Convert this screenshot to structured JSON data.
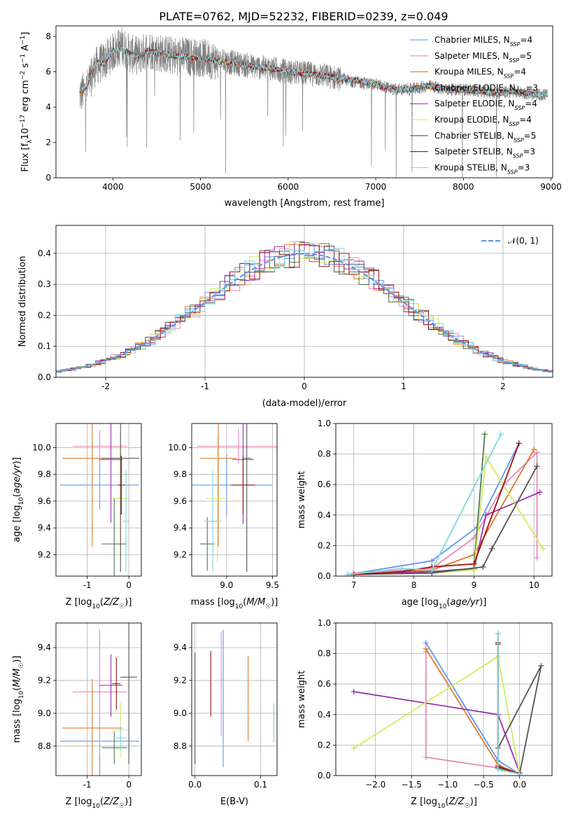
{
  "figure": {
    "title": "PLATE=0762, MJD=52232, FIBERID=0239, z=0.049"
  },
  "models": [
    {
      "name": "Chabrier MILES",
      "nssp": "4",
      "color": "#6495ed"
    },
    {
      "name": "Salpeter MILES",
      "nssp": "5",
      "color": "#e88ab8"
    },
    {
      "name": "Kroupa MILES",
      "nssp": "4",
      "color": "#e07a2a"
    },
    {
      "name": "Chabrier ELODIE",
      "nssp": "3",
      "color": "#4f7a4f"
    },
    {
      "name": "Salpeter ELODIE",
      "nssp": "4",
      "color": "#9b30b0"
    },
    {
      "name": "Kroupa ELODIE",
      "nssp": "4",
      "color": "#d4e860"
    },
    {
      "name": "Chabrier STELIB",
      "nssp": "5",
      "color": "#555555"
    },
    {
      "name": "Salpeter STELIB",
      "nssp": "3",
      "color": "#a01010"
    },
    {
      "name": "Kroupa STELIB",
      "nssp": "3",
      "color": "#7fd8e0"
    }
  ],
  "chart_data": [
    {
      "id": "spectrum",
      "type": "line",
      "xlabel": "wavelength [Angstrom, rest frame]",
      "ylabel": "Flux [f_λ 10^-17 erg cm^-2 s^-1 A^-1]",
      "xlim": [
        3350,
        9020
      ],
      "ylim": [
        0,
        8.6
      ],
      "xticks": [
        4000,
        5000,
        6000,
        7000,
        8000,
        9000
      ],
      "yticks": [
        0,
        2,
        4,
        6,
        8
      ],
      "data_series": {
        "name": "",
        "color": "#808080",
        "x": [
          3620,
          3700,
          3800,
          3900,
          4000,
          4100,
          4200,
          4300,
          4400,
          4500,
          4600,
          4700,
          4800,
          4900,
          5000,
          5200,
          5400,
          5600,
          5800,
          6000,
          6200,
          6400,
          6600,
          6800,
          7000,
          7200,
          7400,
          7600,
          7800,
          8000,
          8200,
          8400,
          8600,
          8800,
          8960
        ],
        "y": [
          4.7,
          5.0,
          6.3,
          6.6,
          7.1,
          7.5,
          7.0,
          6.9,
          7.3,
          7.1,
          7.0,
          6.9,
          6.9,
          6.8,
          6.8,
          6.6,
          6.5,
          6.3,
          6.2,
          6.0,
          5.9,
          5.8,
          5.6,
          5.4,
          5.3,
          5.0,
          5.0,
          5.2,
          5.0,
          5.0,
          4.9,
          4.8,
          4.9,
          4.7,
          4.7
        ]
      },
      "model_curve": {
        "x": [
          3620,
          3700,
          3800,
          3900,
          4000,
          4100,
          4200,
          4300,
          4400,
          4500,
          4600,
          4700,
          4800,
          4900,
          5000,
          5200,
          5400,
          5600,
          5800,
          6000,
          6200,
          6400,
          6600,
          6800,
          7000,
          7200,
          7400,
          7600,
          7800,
          8000,
          8200,
          8400,
          8600,
          8800,
          8960
        ],
        "y": [
          4.8,
          5.2,
          6.5,
          6.5,
          7.2,
          7.3,
          7.0,
          6.8,
          7.2,
          7.1,
          7.0,
          6.9,
          6.9,
          6.8,
          6.8,
          6.6,
          6.5,
          6.3,
          6.2,
          6.0,
          5.9,
          5.8,
          5.6,
          5.5,
          5.3,
          5.0,
          5.0,
          5.2,
          5.0,
          5.0,
          4.9,
          4.8,
          4.9,
          4.7,
          4.7
        ]
      },
      "legend_position": "right"
    },
    {
      "id": "residuals",
      "type": "line",
      "xlabel": "(data-model)/error",
      "ylabel": "Normed distribution",
      "xlim": [
        -2.5,
        2.5
      ],
      "ylim": [
        0,
        0.49
      ],
      "xticks": [
        -2,
        -1,
        0,
        1,
        2
      ],
      "yticks": [
        0.0,
        0.1,
        0.2,
        0.3,
        0.4
      ],
      "gaussian": {
        "label": "N(0,1)",
        "color": "#6495ed"
      },
      "grid": true,
      "legend_position": "top-right"
    },
    {
      "id": "age_vs_Z",
      "type": "scatter",
      "xlabel": "Z [log10(Z/Z☉)]",
      "ylabel": "age  [log10(age/yr)]",
      "xlim": [
        -1.75,
        0.3
      ],
      "ylim": [
        9.04,
        10.18
      ],
      "xticks": [
        -1,
        0
      ],
      "yticks": [
        9.2,
        9.4,
        9.6,
        9.8,
        10.0
      ],
      "points": [
        {
          "x": -0.7,
          "xerr": 0.95,
          "y": 9.72,
          "yerr": 0.18
        },
        {
          "x": -0.7,
          "xerr": 0.65,
          "y": 10.01,
          "yerr": 0.12
        },
        {
          "x": -0.88,
          "xerr": 0.72,
          "y": 9.92,
          "yerr": 0.66
        },
        {
          "x": -0.35,
          "xerr": 0.3,
          "y": 9.28,
          "yerr": 0.34
        },
        {
          "x": -0.43,
          "xerr": 0.28,
          "y": 9.91,
          "yerr": 0.47
        },
        {
          "x": -0.2,
          "xerr": 0.2,
          "y": 9.62,
          "yerr": 0.47
        },
        {
          "x": -0.2,
          "xerr": 0.45,
          "y": 9.92,
          "yerr": 0.85
        },
        {
          "x": -0.18,
          "xerr": 0.08,
          "y": 9.72,
          "yerr": 0.22
        },
        {
          "x": -0.07,
          "xerr": 0.08,
          "y": 9.45,
          "yerr": 0.38
        }
      ],
      "grid": true
    },
    {
      "id": "age_vs_mass",
      "type": "scatter",
      "xlabel": "mass [log10(M/M☉)]",
      "ylabel": "",
      "xlim": [
        8.62,
        9.55
      ],
      "ylim": [
        9.04,
        10.18
      ],
      "xticks": [
        9.0,
        9.5
      ],
      "yticks": [
        9.2,
        9.4,
        9.6,
        9.8,
        10.0
      ],
      "points": [
        {
          "x": 9.0,
          "xerr": 0.5,
          "y": 9.72,
          "yerr": 0.23
        },
        {
          "x": 9.13,
          "xerr": 0.45,
          "y": 10.01,
          "yerr": 0.13
        },
        {
          "x": 8.91,
          "xerr": 0.2,
          "y": 9.92,
          "yerr": 0.66
        },
        {
          "x": 8.79,
          "xerr": 0.08,
          "y": 9.28,
          "yerr": 0.2
        },
        {
          "x": 9.18,
          "xerr": 0.12,
          "y": 9.91,
          "yerr": 0.48
        },
        {
          "x": 8.9,
          "xerr": 0.12,
          "y": 9.62,
          "yerr": 0.47
        },
        {
          "x": 9.22,
          "xerr": 0.05,
          "y": 9.92,
          "yerr": 0.85
        },
        {
          "x": 9.18,
          "xerr": 0.13,
          "y": 9.72,
          "yerr": 0.22
        },
        {
          "x": 8.85,
          "xerr": 0.1,
          "y": 9.45,
          "yerr": 0.38
        }
      ],
      "grid": true
    },
    {
      "id": "mass_weight_vs_age",
      "type": "line",
      "xlabel": "age  [log10(age/yr)]",
      "ylabel": "mass weight",
      "xlim": [
        6.7,
        10.3
      ],
      "ylim": [
        0,
        1.0
      ],
      "xticks": [
        7,
        8,
        9,
        10
      ],
      "yticks": [
        0.0,
        0.2,
        0.4,
        0.6,
        0.8,
        1.0
      ],
      "series": [
        {
          "x": [
            6.9,
            8.3,
            9.05,
            9.75
          ],
          "y": [
            0.01,
            0.1,
            0.32,
            0.87
          ]
        },
        {
          "x": [
            7.0,
            8.3,
            9.0,
            9.5,
            10.05,
            10.05
          ],
          "y": [
            0.02,
            0.05,
            0.25,
            0.6,
            0.81,
            0.12
          ]
        },
        {
          "x": [
            6.9,
            8.3,
            9.0,
            10.0
          ],
          "y": [
            0.01,
            0.04,
            0.14,
            0.83
          ]
        },
        {
          "x": [
            6.9,
            8.3,
            9.0,
            9.18
          ],
          "y": [
            0.01,
            0.03,
            0.05,
            0.93
          ]
        },
        {
          "x": [
            6.9,
            8.3,
            9.0,
            9.2,
            10.1
          ],
          "y": [
            0.01,
            0.03,
            0.04,
            0.4,
            0.55
          ]
        },
        {
          "x": [
            6.9,
            8.3,
            9.0,
            9.2,
            10.15
          ],
          "y": [
            0.01,
            0.02,
            0.04,
            0.78,
            0.18
          ]
        },
        {
          "x": [
            6.9,
            8.3,
            9.15,
            9.3,
            10.05
          ],
          "y": [
            0.01,
            0.02,
            0.06,
            0.18,
            0.72
          ]
        },
        {
          "x": [
            7.0,
            7.8,
            8.3,
            9.0,
            9.75
          ],
          "y": [
            0.01,
            0.03,
            0.06,
            0.08,
            0.87
          ]
        },
        {
          "x": [
            6.9,
            7.8,
            8.3,
            9.45
          ],
          "y": [
            0.01,
            0.05,
            0.04,
            0.93
          ]
        }
      ],
      "grid": true
    },
    {
      "id": "mass_vs_Z",
      "type": "scatter",
      "xlabel": "Z [log10(Z/Z☉)]",
      "ylabel": "mass [log10(M/M☉)]",
      "xlim": [
        -1.75,
        0.3
      ],
      "ylim": [
        8.62,
        9.55
      ],
      "xticks": [
        -1,
        0
      ],
      "yticks": [
        8.8,
        9.0,
        9.2,
        9.4
      ],
      "points": [
        {
          "x": -0.7,
          "xerr": 0.95,
          "y": 8.83,
          "yerr": 0.68
        },
        {
          "x": -0.7,
          "xerr": 0.65,
          "y": 9.13,
          "yerr": 0.38
        },
        {
          "x": -0.88,
          "xerr": 0.72,
          "y": 8.91,
          "yerr": 0.3
        },
        {
          "x": -0.35,
          "xerr": 0.3,
          "y": 8.79,
          "yerr": 0.1
        },
        {
          "x": -0.43,
          "xerr": 0.28,
          "y": 9.17,
          "yerr": 0.19
        },
        {
          "x": -0.2,
          "xerr": 0.2,
          "y": 8.9,
          "yerr": 0.17
        },
        {
          "x": 0.0,
          "xerr": 0.2,
          "y": 9.22,
          "yerr": 0.53
        },
        {
          "x": -0.3,
          "xerr": 0.1,
          "y": 9.18,
          "yerr": 0.16
        },
        {
          "x": -0.2,
          "xerr": 0.15,
          "y": 8.85,
          "yerr": 0.07
        }
      ],
      "grid": true
    },
    {
      "id": "mass_vs_EBV",
      "type": "scatter",
      "xlabel": "E(B-V)",
      "ylabel": "",
      "xlim": [
        -0.005,
        0.125
      ],
      "ylim": [
        8.62,
        9.55
      ],
      "xticks": [
        0.0,
        0.1
      ],
      "yticks": [
        8.8,
        9.0,
        9.2,
        9.4
      ],
      "points": [
        {
          "x": 0.0,
          "y": 9.03,
          "yerr": 0.34
        },
        {
          "x": 0.024,
          "y": 9.18,
          "yerr": 0.2
        },
        {
          "x": 0.04,
          "y": 9.18,
          "yerr": 0.32
        },
        {
          "x": 0.043,
          "y": 9.09,
          "yerr": 0.42
        },
        {
          "x": 0.081,
          "y": 9.09,
          "yerr": 0.26
        },
        {
          "x": 0.12,
          "y": 8.94,
          "yerr": 0.12
        }
      ],
      "grid": true
    },
    {
      "id": "mass_weight_vs_Z",
      "type": "line",
      "xlabel": "Z [log10(Z/Z☉)]",
      "ylabel": "mass weight",
      "xlim": [
        -2.55,
        0.45
      ],
      "ylim": [
        0,
        1.0
      ],
      "xticks": [
        -2.0,
        -1.5,
        -1.0,
        -0.5,
        0.0
      ],
      "yticks": [
        0.0,
        0.2,
        0.4,
        0.6,
        0.8,
        1.0
      ],
      "series": [
        {
          "x": [
            -1.3,
            -0.3,
            0.0
          ],
          "y": [
            0.87,
            0.1,
            0.01
          ]
        },
        {
          "x": [
            -1.3,
            -1.3,
            -0.3,
            0.0
          ],
          "y": [
            0.81,
            0.12,
            0.05,
            0.02
          ]
        },
        {
          "x": [
            -1.3,
            -0.3,
            0.0
          ],
          "y": [
            0.83,
            0.07,
            0.01
          ]
        },
        {
          "x": [
            -0.3,
            -0.3,
            0.0
          ],
          "y": [
            0.93,
            0.05,
            0.01
          ]
        },
        {
          "x": [
            -2.3,
            -0.3,
            0.0
          ],
          "y": [
            0.55,
            0.4,
            0.02
          ]
        },
        {
          "x": [
            -2.3,
            -0.3,
            0.0
          ],
          "y": [
            0.18,
            0.78,
            0.01
          ]
        },
        {
          "x": [
            0.0,
            0.3,
            -0.3,
            -0.3
          ],
          "y": [
            0.01,
            0.72,
            0.18,
            0.86
          ]
        },
        {
          "x": [
            -0.3,
            -0.3,
            0.0
          ],
          "y": [
            0.87,
            0.06,
            0.01
          ]
        },
        {
          "x": [
            -0.3,
            -0.3,
            0.0
          ],
          "y": [
            0.93,
            0.04,
            0.01
          ]
        }
      ],
      "grid": true
    }
  ]
}
